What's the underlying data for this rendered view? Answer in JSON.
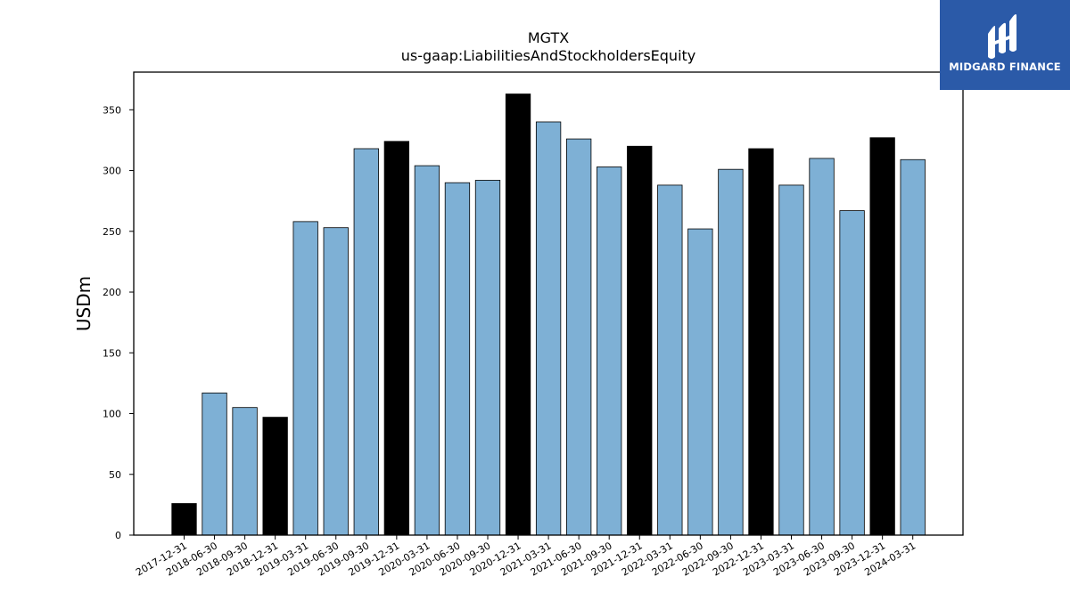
{
  "chart_data": {
    "type": "bar",
    "title": "MGTX",
    "subtitle": "us-gaap:LiabilitiesAndStockholdersEquity",
    "xlabel": "",
    "ylabel": "USDm",
    "ylim": [
      0,
      381
    ],
    "yticks": [
      0,
      50,
      100,
      150,
      200,
      250,
      300,
      350
    ],
    "grid": false,
    "categories": [
      "2017-12-31",
      "2018-06-30",
      "2018-09-30",
      "2018-12-31",
      "2019-03-31",
      "2019-06-30",
      "2019-09-30",
      "2019-12-31",
      "2020-03-31",
      "2020-06-30",
      "2020-09-30",
      "2020-12-31",
      "2021-03-31",
      "2021-06-30",
      "2021-09-30",
      "2021-12-31",
      "2022-03-31",
      "2022-06-30",
      "2022-09-30",
      "2022-12-31",
      "2023-03-31",
      "2023-06-30",
      "2023-09-30",
      "2023-12-31",
      "2024-03-31"
    ],
    "values": [
      26,
      117,
      105,
      97,
      258,
      253,
      318,
      324,
      304,
      290,
      292,
      363,
      340,
      326,
      303,
      320,
      288,
      252,
      301,
      318,
      288,
      310,
      267,
      327,
      309
    ],
    "highlight": [
      true,
      false,
      false,
      true,
      false,
      false,
      false,
      true,
      false,
      false,
      false,
      true,
      false,
      false,
      false,
      true,
      false,
      false,
      false,
      true,
      false,
      false,
      false,
      true,
      false
    ],
    "colors": {
      "bar": "#7eb0d5",
      "highlight": "#000000",
      "edge": "#000000"
    }
  },
  "logo": {
    "text": "MIDGARD FINANCE",
    "background": "#2b5aa8"
  }
}
